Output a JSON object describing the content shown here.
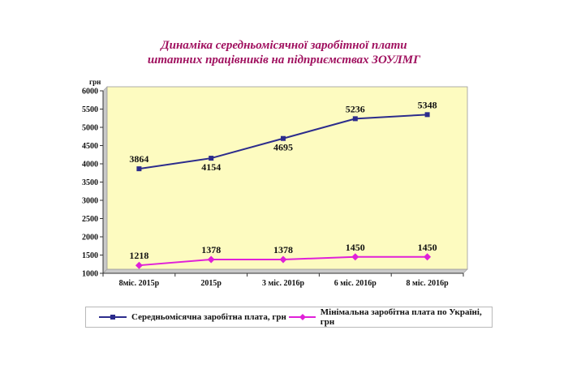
{
  "chart_data": {
    "type": "line",
    "title_lines": [
      "Динаміка середньомісячної заробітної плати",
      "штатних працівників на підприємствах ЗОУЛМГ"
    ],
    "ylabel": "грн",
    "xlabel": "",
    "ylim": [
      1000,
      6000
    ],
    "yticks": [
      1000,
      1500,
      2000,
      2500,
      3000,
      3500,
      4000,
      4500,
      5000,
      5500,
      6000
    ],
    "categories": [
      "8міс. 2015р",
      "2015р",
      "3 міс. 2016р",
      "6 міс. 2016р",
      "8 міс. 2016р"
    ],
    "grid": false,
    "plot_background": "#fdfbc0",
    "series": [
      {
        "name": "Середньомісячна заробітна плата, грн",
        "color": "#2c2c8c",
        "marker": "square",
        "values": [
          3864,
          4154,
          4695,
          5236,
          5348
        ],
        "label_positions": [
          "above",
          "below",
          "below",
          "above",
          "above"
        ]
      },
      {
        "name": "Мінімальна заробітна плата по Україні, грн",
        "color": "#e020d8",
        "marker": "diamond",
        "values": [
          1218,
          1378,
          1378,
          1450,
          1450
        ],
        "label_positions": [
          "above",
          "above",
          "above",
          "above",
          "above"
        ]
      }
    ],
    "legend_position": "bottom"
  }
}
